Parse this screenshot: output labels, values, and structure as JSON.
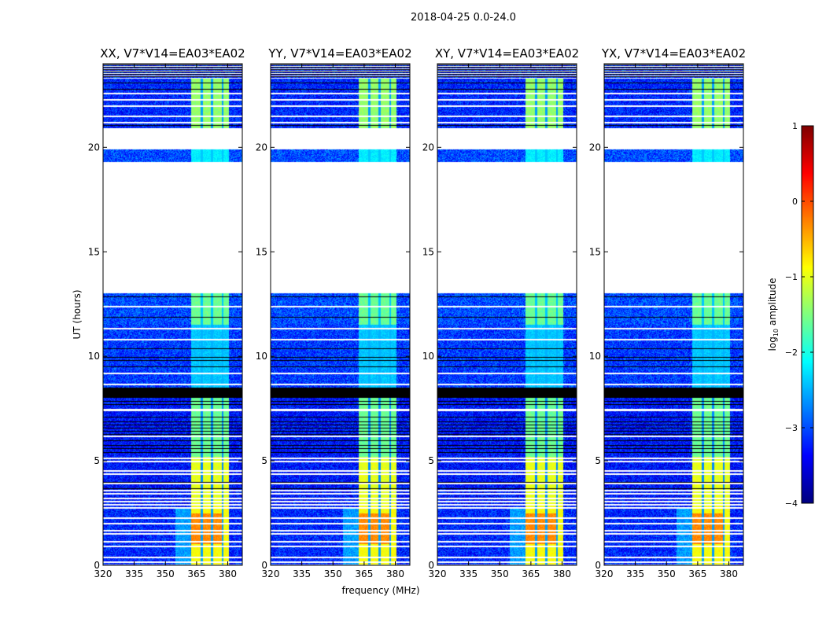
{
  "chart_data": {
    "type": "heatmap",
    "title": "2018-04-25 0.0-24.0",
    "xlabel": "frequency (MHz)",
    "ylabel": "UT (hours)",
    "xlim": [
      320,
      387
    ],
    "ylim": [
      0,
      24
    ],
    "xticks": [
      320,
      335,
      350,
      365,
      380
    ],
    "yticks": [
      0,
      5,
      10,
      15,
      20
    ],
    "panels": [
      {
        "title": "XX, V7*V14=EA03*EA02"
      },
      {
        "title": "YY, V7*V14=EA03*EA02"
      },
      {
        "title": "XY, V7*V14=EA03*EA02"
      },
      {
        "title": "YX, V7*V14=EA03*EA02"
      }
    ],
    "colorbar": {
      "label": "log10 amplitude",
      "label_main": "log",
      "label_sub": "10",
      "label_rest": " amplitude",
      "range": [
        -4,
        1
      ],
      "ticks": [
        1,
        0,
        -1,
        -2,
        -3,
        -4
      ],
      "tick_labels": [
        "1",
        "0",
        "−1",
        "−2",
        "−3",
        "−4"
      ],
      "colormap": "jet"
    },
    "signal_band_MHz": [
      362.5,
      382.5
    ],
    "subband_edges_MHz": [
      362.5,
      367.5,
      372.5,
      377.5,
      382.5
    ],
    "segments": [
      {
        "t": [
          0.05,
          2.9
        ],
        "background": -3.2,
        "band": -0.9,
        "hot": -0.3
      },
      {
        "t": [
          2.9,
          5.2
        ],
        "background": -3.3,
        "band": -1.0,
        "hot": -1.0
      },
      {
        "t": [
          5.2,
          8.0
        ],
        "background": -3.3,
        "band": -1.6,
        "hot": -1.3
      },
      {
        "t": [
          8.0,
          8.5
        ],
        "flag": "black"
      },
      {
        "t": [
          8.5,
          11.5
        ],
        "background": -3.1,
        "band": -2.4,
        "hot": -2.4
      },
      {
        "t": [
          11.5,
          13.0
        ],
        "background": -3.0,
        "band": -1.6,
        "hot": -1.3
      },
      {
        "t": [
          13.0,
          19.3
        ],
        "flag": "white"
      },
      {
        "t": [
          19.3,
          19.9
        ],
        "background": -3.0,
        "band": -2.2,
        "hot": -2.2
      },
      {
        "t": [
          19.9,
          20.9
        ],
        "flag": "white"
      },
      {
        "t": [
          20.9,
          23.3
        ],
        "background": -3.2,
        "band": -1.4,
        "hot": -1.2
      },
      {
        "t": [
          23.3,
          24.0
        ],
        "flag": "striped"
      }
    ],
    "white_flag_lines": [
      0.2,
      0.4,
      0.95,
      1.15,
      1.55,
      1.7,
      2.05,
      2.3,
      2.8,
      2.95,
      3.1,
      3.25,
      3.45,
      3.6,
      3.95,
      4.4,
      4.55,
      5.0,
      5.15,
      6.2,
      7.45,
      7.5,
      8.7,
      9.2,
      10.85,
      11.35,
      12.4,
      21.2,
      21.5,
      22.0,
      22.3,
      22.6
    ],
    "black_flag_lines": [
      3.7,
      4.0,
      5.4,
      5.6,
      5.75,
      6.0,
      6.3,
      6.45,
      6.6,
      6.75,
      6.9,
      7.1,
      7.7,
      7.85,
      9.5,
      9.8,
      9.95,
      10.4,
      11.9,
      12.85,
      21.05,
      22.8,
      23.1
    ]
  }
}
